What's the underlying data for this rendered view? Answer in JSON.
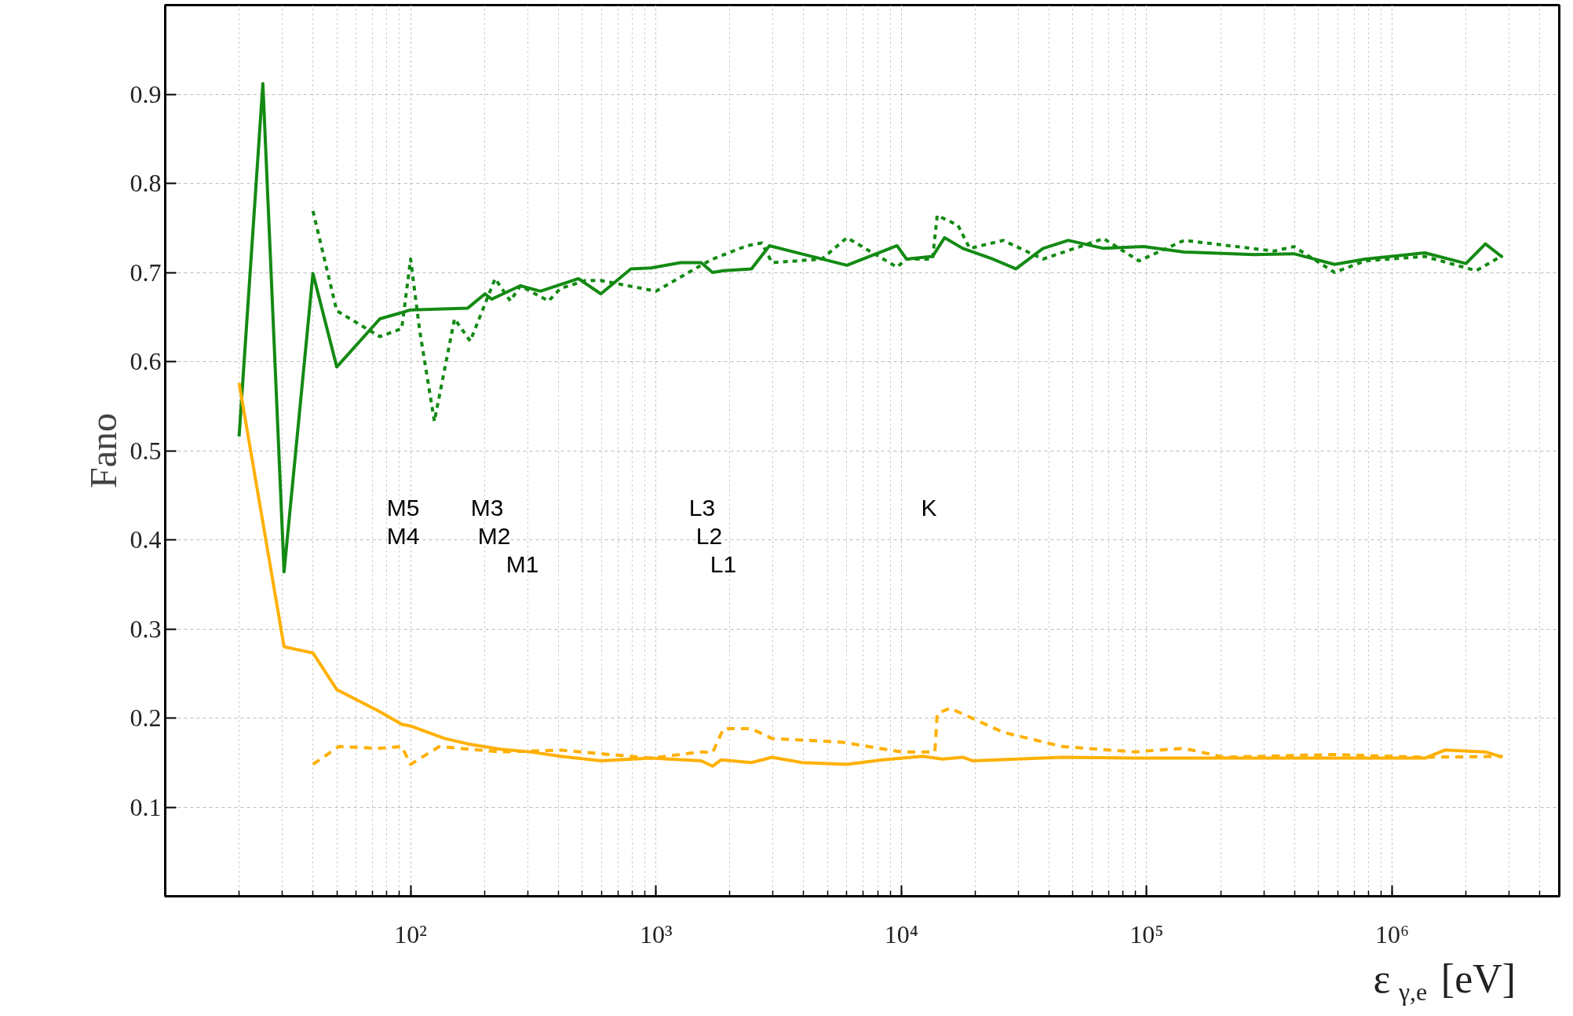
{
  "chart_data": {
    "type": "line",
    "xlabel": "ε$_{γ,e}$ [eV]",
    "ylabel": "Fano",
    "log": "x",
    "grid": true,
    "line_style": "solid",
    "xlim": [
      10,
      4800000
    ],
    "ylim": [
      0,
      1
    ],
    "xticks": [
      {
        "value": 100,
        "label": "10²"
      },
      {
        "value": 1000,
        "label": "10³"
      },
      {
        "value": 10000,
        "label": "10⁴"
      },
      {
        "value": 100000,
        "label": "10⁵"
      },
      {
        "value": 1000000,
        "label": "10⁶"
      }
    ],
    "yticks": [
      0.1,
      0.2,
      0.3,
      0.4,
      0.5,
      0.6,
      0.7,
      0.8,
      0.9
    ],
    "series": [
      {
        "color": "#138a13",
        "x": [
          20,
          25,
          30.5,
          40,
          50,
          75,
          92,
          100,
          171,
          201,
          214,
          280,
          338,
          483,
          596,
          790,
          955,
          1260,
          1528,
          1700,
          1884,
          2450,
          2900,
          6000,
          9600,
          10500,
          13400,
          15000,
          17800,
          23600,
          29300,
          37800,
          47900,
          66700,
          97000,
          142000,
          274000,
          398000,
          583000,
          776000,
          1360000,
          2000000,
          2400000,
          2820000
        ],
        "values": [
          0.516,
          0.912,
          0.364,
          0.699,
          0.594,
          0.648,
          0.655,
          0.658,
          0.66,
          0.676,
          0.67,
          0.685,
          0.679,
          0.693,
          0.676,
          0.704,
          0.705,
          0.711,
          0.711,
          0.7,
          0.702,
          0.704,
          0.73,
          0.708,
          0.73,
          0.715,
          0.718,
          0.739,
          0.727,
          0.715,
          0.704,
          0.727,
          0.736,
          0.727,
          0.729,
          0.723,
          0.72,
          0.721,
          0.709,
          0.715,
          0.722,
          0.71,
          0.732,
          0.717
        ]
      },
      {
        "color": "#138a13",
        "line_style": "dotted",
        "x": [
          40,
          50,
          75,
          92,
          100,
          109,
          125,
          151,
          175,
          221,
          255,
          280,
          365,
          408,
          517,
          596,
          1000,
          1528,
          1700,
          2350,
          2700,
          2970,
          4740,
          6000,
          9600,
          10500,
          13400,
          14000,
          17000,
          19000,
          26000,
          37800,
          66700,
          93000,
          142000,
          330000,
          398000,
          583000,
          776000,
          1360000,
          2200000,
          2820000
        ],
        "values": [
          0.769,
          0.657,
          0.628,
          0.637,
          0.715,
          0.634,
          0.533,
          0.648,
          0.623,
          0.693,
          0.668,
          0.685,
          0.668,
          0.682,
          0.691,
          0.691,
          0.679,
          0.708,
          0.715,
          0.73,
          0.733,
          0.711,
          0.715,
          0.739,
          0.706,
          0.715,
          0.715,
          0.764,
          0.753,
          0.727,
          0.736,
          0.715,
          0.738,
          0.713,
          0.736,
          0.724,
          0.729,
          0.7,
          0.713,
          0.718,
          0.702,
          0.719
        ]
      },
      {
        "color": "#ffb000",
        "x": [
          20,
          30.5,
          40,
          50,
          75,
          92,
          100,
          138,
          171,
          232,
          307,
          408,
          596,
          955,
          1528,
          1700,
          1840,
          2450,
          2970,
          3940,
          6000,
          8400,
          12200,
          14700,
          17800,
          19500,
          45300,
          89000,
          274000,
          583000,
          1360000,
          1640000,
          2400000,
          2820000
        ],
        "values": [
          0.576,
          0.28,
          0.273,
          0.232,
          0.207,
          0.193,
          0.191,
          0.177,
          0.171,
          0.165,
          0.162,
          0.157,
          0.152,
          0.155,
          0.152,
          0.146,
          0.153,
          0.15,
          0.156,
          0.15,
          0.148,
          0.153,
          0.157,
          0.154,
          0.156,
          0.152,
          0.156,
          0.155,
          0.155,
          0.155,
          0.155,
          0.164,
          0.162,
          0.156
        ]
      },
      {
        "color": "#ffb000",
        "line_style": "dashed",
        "x": [
          40,
          51,
          75,
          92,
          100,
          131,
          175,
          232,
          408,
          955,
          1528,
          1700,
          1884,
          2450,
          2970,
          5700,
          10000,
          13700,
          14000,
          15800,
          26000,
          45300,
          89000,
          142000,
          206000,
          583000,
          1360000,
          2820000
        ],
        "values": [
          0.148,
          0.168,
          0.166,
          0.168,
          0.148,
          0.168,
          0.165,
          0.162,
          0.164,
          0.155,
          0.162,
          0.161,
          0.188,
          0.188,
          0.177,
          0.173,
          0.162,
          0.162,
          0.205,
          0.211,
          0.184,
          0.168,
          0.162,
          0.166,
          0.156,
          0.159,
          0.156,
          0.157
        ]
      }
    ],
    "annotations": [
      "M5",
      "M4",
      "M3",
      "M2",
      "M1",
      "L3",
      "L2",
      "L1",
      "K"
    ]
  }
}
